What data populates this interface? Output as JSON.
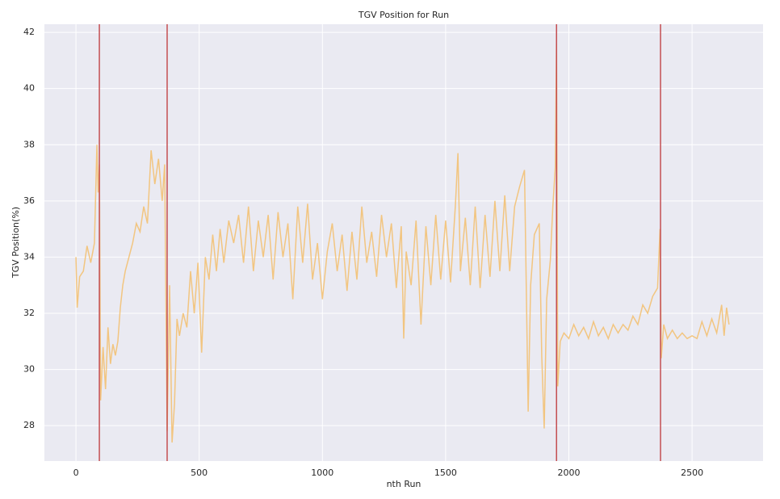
{
  "chart_data": {
    "type": "line",
    "title": "TGV Position for Run",
    "xlabel": "nth Run",
    "ylabel": "TGV Position(%)",
    "x": [
      0,
      5,
      15,
      30,
      45,
      60,
      75,
      85,
      90,
      95,
      100,
      110,
      120,
      130,
      140,
      150,
      160,
      170,
      180,
      190,
      200,
      215,
      230,
      245,
      260,
      275,
      290,
      305,
      320,
      335,
      350,
      360,
      370,
      380,
      390,
      400,
      410,
      420,
      435,
      450,
      465,
      480,
      495,
      510,
      525,
      540,
      555,
      570,
      585,
      600,
      620,
      640,
      660,
      680,
      700,
      720,
      740,
      760,
      780,
      800,
      820,
      840,
      860,
      880,
      900,
      920,
      940,
      960,
      980,
      1000,
      1020,
      1040,
      1060,
      1080,
      1100,
      1120,
      1140,
      1160,
      1180,
      1200,
      1220,
      1240,
      1260,
      1280,
      1300,
      1320,
      1330,
      1340,
      1360,
      1380,
      1400,
      1420,
      1440,
      1460,
      1480,
      1500,
      1520,
      1540,
      1550,
      1560,
      1580,
      1600,
      1620,
      1640,
      1660,
      1680,
      1700,
      1720,
      1740,
      1760,
      1780,
      1800,
      1820,
      1835,
      1845,
      1860,
      1880,
      1890,
      1900,
      1910,
      1925,
      1935,
      1945,
      1950,
      1955,
      1965,
      1980,
      2000,
      2020,
      2040,
      2060,
      2080,
      2100,
      2120,
      2140,
      2160,
      2180,
      2200,
      2220,
      2240,
      2260,
      2280,
      2300,
      2320,
      2340,
      2360,
      2370,
      2375,
      2385,
      2400,
      2420,
      2440,
      2460,
      2480,
      2500,
      2520,
      2540,
      2560,
      2580,
      2600,
      2620,
      2630,
      2640,
      2650
    ],
    "series": [
      {
        "name": "TGV Position",
        "color": "#f3c173",
        "values": [
          34,
          32.2,
          33.3,
          33.5,
          34.4,
          33.8,
          34.5,
          38,
          36.3,
          37.3,
          28.9,
          30.8,
          29.3,
          31.5,
          30.2,
          30.9,
          30.5,
          31,
          32.2,
          33,
          33.5,
          34,
          34.5,
          35.2,
          34.9,
          35.8,
          35.2,
          37.8,
          36.6,
          37.5,
          36,
          37.3,
          27.8,
          33,
          27.4,
          28.8,
          31.8,
          31.2,
          32,
          31.5,
          33.5,
          32,
          33.8,
          30.6,
          34,
          33.2,
          34.8,
          33.5,
          35,
          33.8,
          35.3,
          34.5,
          35.5,
          33.8,
          35.8,
          33.5,
          35.3,
          34,
          35.5,
          33.2,
          35.6,
          34,
          35.2,
          32.5,
          35.8,
          33.8,
          35.9,
          33.2,
          34.5,
          32.5,
          34.2,
          35.2,
          33.5,
          34.8,
          32.8,
          34.9,
          33.2,
          35.8,
          33.8,
          34.9,
          33.3,
          35.5,
          34,
          35.2,
          32.9,
          35.1,
          31.1,
          34.2,
          33,
          35.3,
          31.6,
          35.1,
          33,
          35.5,
          33.2,
          35.3,
          33.1,
          35.9,
          37.7,
          33.5,
          35.4,
          33,
          35.8,
          32.9,
          35.5,
          33.3,
          36,
          33.5,
          36.2,
          33.5,
          35.8,
          36.5,
          37.1,
          28.5,
          33,
          34.8,
          35.2,
          30.5,
          27.9,
          32.5,
          33.9,
          35.8,
          37.2,
          41.6,
          29.4,
          31,
          31.3,
          31.1,
          31.6,
          31.2,
          31.5,
          31.1,
          31.7,
          31.2,
          31.5,
          31.1,
          31.6,
          31.3,
          31.6,
          31.4,
          31.9,
          31.6,
          32.3,
          32,
          32.6,
          32.9,
          35,
          30.4,
          31.6,
          31.1,
          31.4,
          31.1,
          31.3,
          31.1,
          31.2,
          31.1,
          31.7,
          31.2,
          31.8,
          31.3,
          32.3,
          31.2,
          32.2,
          31.6
        ]
      }
    ],
    "vlines": [
      95,
      370,
      1950,
      2372
    ],
    "vline_color": "#c44e52",
    "xlim": [
      -128,
      2788
    ],
    "xticks": [
      0,
      500,
      1000,
      1500,
      2000,
      2500
    ],
    "ylim": [
      26.74,
      42.29
    ],
    "yticks": [
      28,
      30,
      32,
      34,
      36,
      38,
      40,
      42
    ],
    "grid": true
  }
}
